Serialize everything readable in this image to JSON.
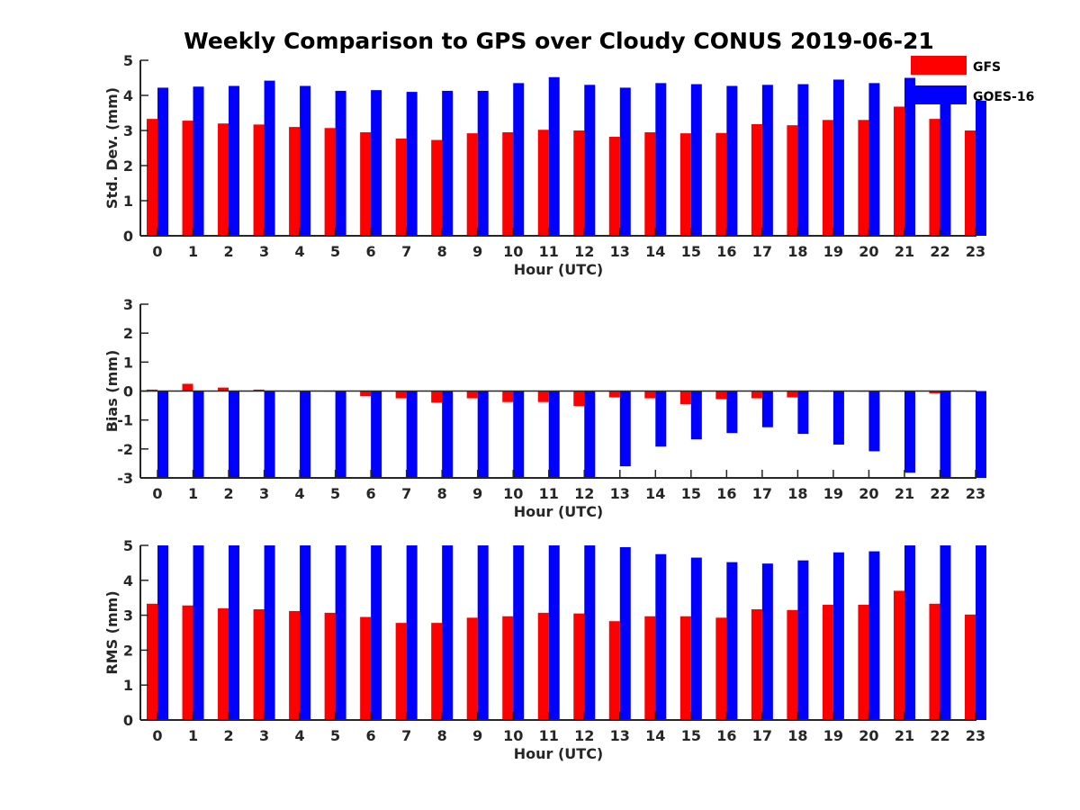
{
  "title": "Weekly Comparison to GPS over Cloudy CONUS 2019-06-21",
  "colors": {
    "GFS": "#ff0000",
    "GOES-16": "#0000ff"
  },
  "legend": {
    "placement": "top-right",
    "entries": [
      "GFS",
      "GOES-16"
    ]
  },
  "chart_data": [
    {
      "type": "bar",
      "xlabel": "Hour (UTC)",
      "ylabel": "Std. Dev. (mm)",
      "ylim": [
        0,
        5
      ],
      "yticks": [
        "0",
        "1",
        "2",
        "3",
        "4",
        "5"
      ],
      "categories": [
        "0",
        "1",
        "2",
        "3",
        "4",
        "5",
        "6",
        "7",
        "8",
        "9",
        "10",
        "11",
        "12",
        "13",
        "14",
        "15",
        "16",
        "17",
        "18",
        "19",
        "20",
        "21",
        "22",
        "23"
      ],
      "series": [
        {
          "name": "GFS",
          "values": [
            3.33,
            3.28,
            3.2,
            3.17,
            3.1,
            3.07,
            2.95,
            2.77,
            2.73,
            2.92,
            2.95,
            3.02,
            3.0,
            2.82,
            2.95,
            2.92,
            2.93,
            3.18,
            3.15,
            3.3,
            3.3,
            3.68,
            3.33,
            3.0
          ]
        },
        {
          "name": "GOES-16",
          "values": [
            4.22,
            4.25,
            4.27,
            4.42,
            4.27,
            4.13,
            4.15,
            4.1,
            4.13,
            4.13,
            4.35,
            4.52,
            4.3,
            4.22,
            4.35,
            4.32,
            4.27,
            4.3,
            4.32,
            4.45,
            4.35,
            4.5,
            4.05,
            3.85
          ]
        }
      ]
    },
    {
      "type": "bar",
      "xlabel": "Hour (UTC)",
      "ylabel": "Bias (mm)",
      "ylim": [
        -3,
        3
      ],
      "yticks": [
        "-3",
        "-2",
        "-1",
        "0",
        "1",
        "2",
        "3"
      ],
      "categories": [
        "0",
        "1",
        "2",
        "3",
        "4",
        "5",
        "6",
        "7",
        "8",
        "9",
        "10",
        "11",
        "12",
        "13",
        "14",
        "15",
        "16",
        "17",
        "18",
        "19",
        "20",
        "21",
        "22",
        "23"
      ],
      "series": [
        {
          "name": "GFS",
          "values": [
            0.05,
            0.25,
            0.12,
            0.05,
            -0.02,
            -0.02,
            -0.18,
            -0.25,
            -0.4,
            -0.25,
            -0.38,
            -0.38,
            -0.52,
            -0.22,
            -0.25,
            -0.45,
            -0.28,
            -0.25,
            -0.22,
            -0.02,
            -0.02,
            -0.02,
            -0.08,
            -0.02
          ]
        },
        {
          "name": "GOES-16",
          "values": [
            -3.0,
            -3.0,
            -3.0,
            -3.0,
            -3.0,
            -3.0,
            -3.0,
            -3.0,
            -3.0,
            -3.0,
            -3.0,
            -3.0,
            -3.0,
            -2.6,
            -1.92,
            -1.67,
            -1.45,
            -1.25,
            -1.48,
            -1.85,
            -2.08,
            -2.82,
            -3.0,
            -3.0
          ]
        }
      ]
    },
    {
      "type": "bar",
      "xlabel": "Hour (UTC)",
      "ylabel": "RMS (mm)",
      "ylim": [
        0,
        5
      ],
      "yticks": [
        "0",
        "1",
        "2",
        "3",
        "4",
        "5"
      ],
      "categories": [
        "0",
        "1",
        "2",
        "3",
        "4",
        "5",
        "6",
        "7",
        "8",
        "9",
        "10",
        "11",
        "12",
        "13",
        "14",
        "15",
        "16",
        "17",
        "18",
        "19",
        "20",
        "21",
        "22",
        "23"
      ],
      "series": [
        {
          "name": "GFS",
          "values": [
            3.33,
            3.28,
            3.2,
            3.17,
            3.12,
            3.07,
            2.95,
            2.78,
            2.78,
            2.93,
            2.97,
            3.07,
            3.05,
            2.83,
            2.97,
            2.97,
            2.93,
            3.17,
            3.15,
            3.3,
            3.3,
            3.7,
            3.33,
            3.02
          ]
        },
        {
          "name": "GOES-16",
          "values": [
            5.0,
            5.0,
            5.0,
            5.0,
            5.0,
            5.0,
            5.0,
            5.0,
            5.0,
            5.0,
            5.0,
            5.0,
            5.0,
            4.95,
            4.75,
            4.65,
            4.52,
            4.48,
            4.57,
            4.8,
            4.83,
            5.0,
            5.0,
            5.0
          ]
        }
      ]
    }
  ]
}
